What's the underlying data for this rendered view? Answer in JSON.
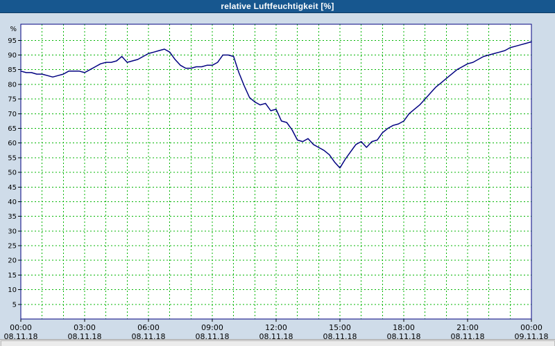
{
  "window": {
    "title": "relative Luftfeuchtigkeit [%]"
  },
  "colors": {
    "titlebar_bg": "#17578f",
    "titlebar_text": "#ffffff",
    "window_bg": "#cfdce9",
    "plot_bg": "#ffffff",
    "plot_border": "#000080",
    "grid": "#00b400",
    "line": "#000080",
    "tick_text": "#000000",
    "scrollbar_bg": "#dcdcdc"
  },
  "chart_data": {
    "type": "line",
    "title": "relative Luftfeuchtigkeit [%]",
    "xlabel": "",
    "ylabel": "%",
    "ylim": [
      0,
      100.5
    ],
    "yticks": [
      5,
      10,
      15,
      20,
      25,
      30,
      35,
      40,
      45,
      50,
      55,
      60,
      65,
      70,
      75,
      80,
      85,
      90,
      95
    ],
    "x_unit": "hours",
    "xlim": [
      0,
      24
    ],
    "x_minor_step_hours": 1,
    "grid": {
      "show": true,
      "style": "dashed",
      "color": "#00b400"
    },
    "legend": "none",
    "x_major_ticks": [
      {
        "hour": 0,
        "time": "00:00",
        "date": "08.11.18"
      },
      {
        "hour": 3,
        "time": "03:00",
        "date": "08.11.18"
      },
      {
        "hour": 6,
        "time": "06:00",
        "date": "08.11.18"
      },
      {
        "hour": 9,
        "time": "09:00",
        "date": "08.11.18"
      },
      {
        "hour": 12,
        "time": "12:00",
        "date": "08.11.18"
      },
      {
        "hour": 15,
        "time": "15:00",
        "date": "08.11.18"
      },
      {
        "hour": 18,
        "time": "18:00",
        "date": "08.11.18"
      },
      {
        "hour": 21,
        "time": "21:00",
        "date": "08.11.18"
      },
      {
        "hour": 24,
        "time": "00:00",
        "date": "09.11.18"
      }
    ],
    "series": [
      {
        "name": "relative Luftfeuchtigkeit",
        "color": "#000080",
        "x_start_hour": 0,
        "x_step_hours": 0.25,
        "values": [
          84.5,
          84,
          84,
          83.5,
          83.5,
          83,
          82.5,
          83,
          83.5,
          84.5,
          84.5,
          84.5,
          84,
          85,
          86,
          87,
          87.5,
          87.5,
          88,
          89.5,
          87.5,
          88,
          88.5,
          89.5,
          90.5,
          91,
          91.5,
          92,
          91,
          88.5,
          86.5,
          85.5,
          85.5,
          86,
          86,
          86.5,
          86.5,
          87.5,
          90,
          90,
          89.5,
          84,
          79.5,
          75.5,
          74,
          73,
          73.5,
          71,
          71.5,
          67.5,
          67,
          64.5,
          61,
          60.5,
          61.5,
          59.5,
          58.5,
          57.5,
          56,
          53.5,
          51.5,
          54.5,
          57,
          59.5,
          60.5,
          58.5,
          60.5,
          61,
          63.5,
          65,
          66,
          66.5,
          67.5,
          70,
          71.5,
          73,
          75,
          77,
          79,
          80.5,
          82,
          83.5,
          85,
          86,
          87,
          87.5,
          88.5,
          89.5,
          90,
          90.5,
          91,
          91.5,
          92.5,
          93,
          93.5,
          94,
          94.5
        ]
      }
    ]
  }
}
